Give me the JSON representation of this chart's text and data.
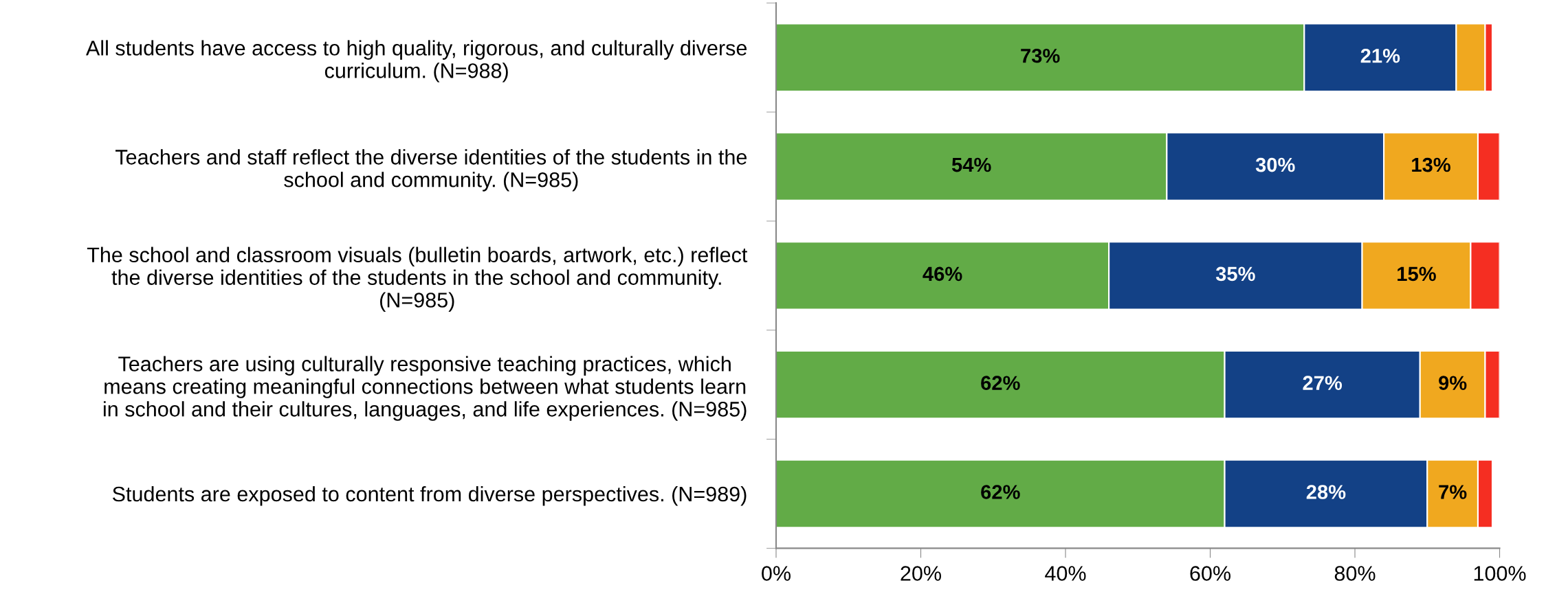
{
  "chart_data": {
    "type": "bar",
    "orientation": "horizontal",
    "stacked": true,
    "categories": [
      "All students have access to high quality, rigorous, and culturally diverse\ncurriculum. (N=988)",
      "Teachers and staff reflect the diverse identities of the students in the\nschool and community. (N=985)",
      "The school and classroom visuals (bulletin boards, artwork, etc.) reflect\nthe diverse identities of the students in the school and community.\n(N=985)",
      "Teachers are using culturally responsive teaching practices, which\nmeans creating meaningful connections between what students learn\nin school and their cultures, languages, and life experiences. (N=985)",
      "Students are exposed to content from diverse perspectives. (N=989)"
    ],
    "series": [
      {
        "color": "#62ab47",
        "values": [
          73,
          54,
          46,
          62,
          62
        ],
        "value_labels": [
          "73%",
          "54%",
          "46%",
          "62%",
          "62%"
        ]
      },
      {
        "color": "#134186",
        "values": [
          21,
          30,
          35,
          27,
          28
        ],
        "value_labels": [
          "21%",
          "30%",
          "35%",
          "27%",
          "28%"
        ]
      },
      {
        "color": "#f0a81f",
        "values": [
          4,
          13,
          15,
          9,
          7
        ],
        "value_labels": [
          null,
          "13%",
          "15%",
          "9%",
          "7%"
        ]
      },
      {
        "color": "#f52e22",
        "values": [
          1,
          3,
          4,
          2,
          2
        ],
        "value_labels": [
          null,
          null,
          null,
          null,
          null
        ]
      }
    ],
    "xlim": [
      0,
      100
    ],
    "xticks": [
      {
        "value": 0,
        "label": "0%"
      },
      {
        "value": 20,
        "label": "20%"
      },
      {
        "value": 40,
        "label": "40%"
      },
      {
        "value": 60,
        "label": "60%"
      },
      {
        "value": 80,
        "label": "80%"
      },
      {
        "value": 100,
        "label": "100%"
      }
    ],
    "grid": false,
    "legend": false
  }
}
